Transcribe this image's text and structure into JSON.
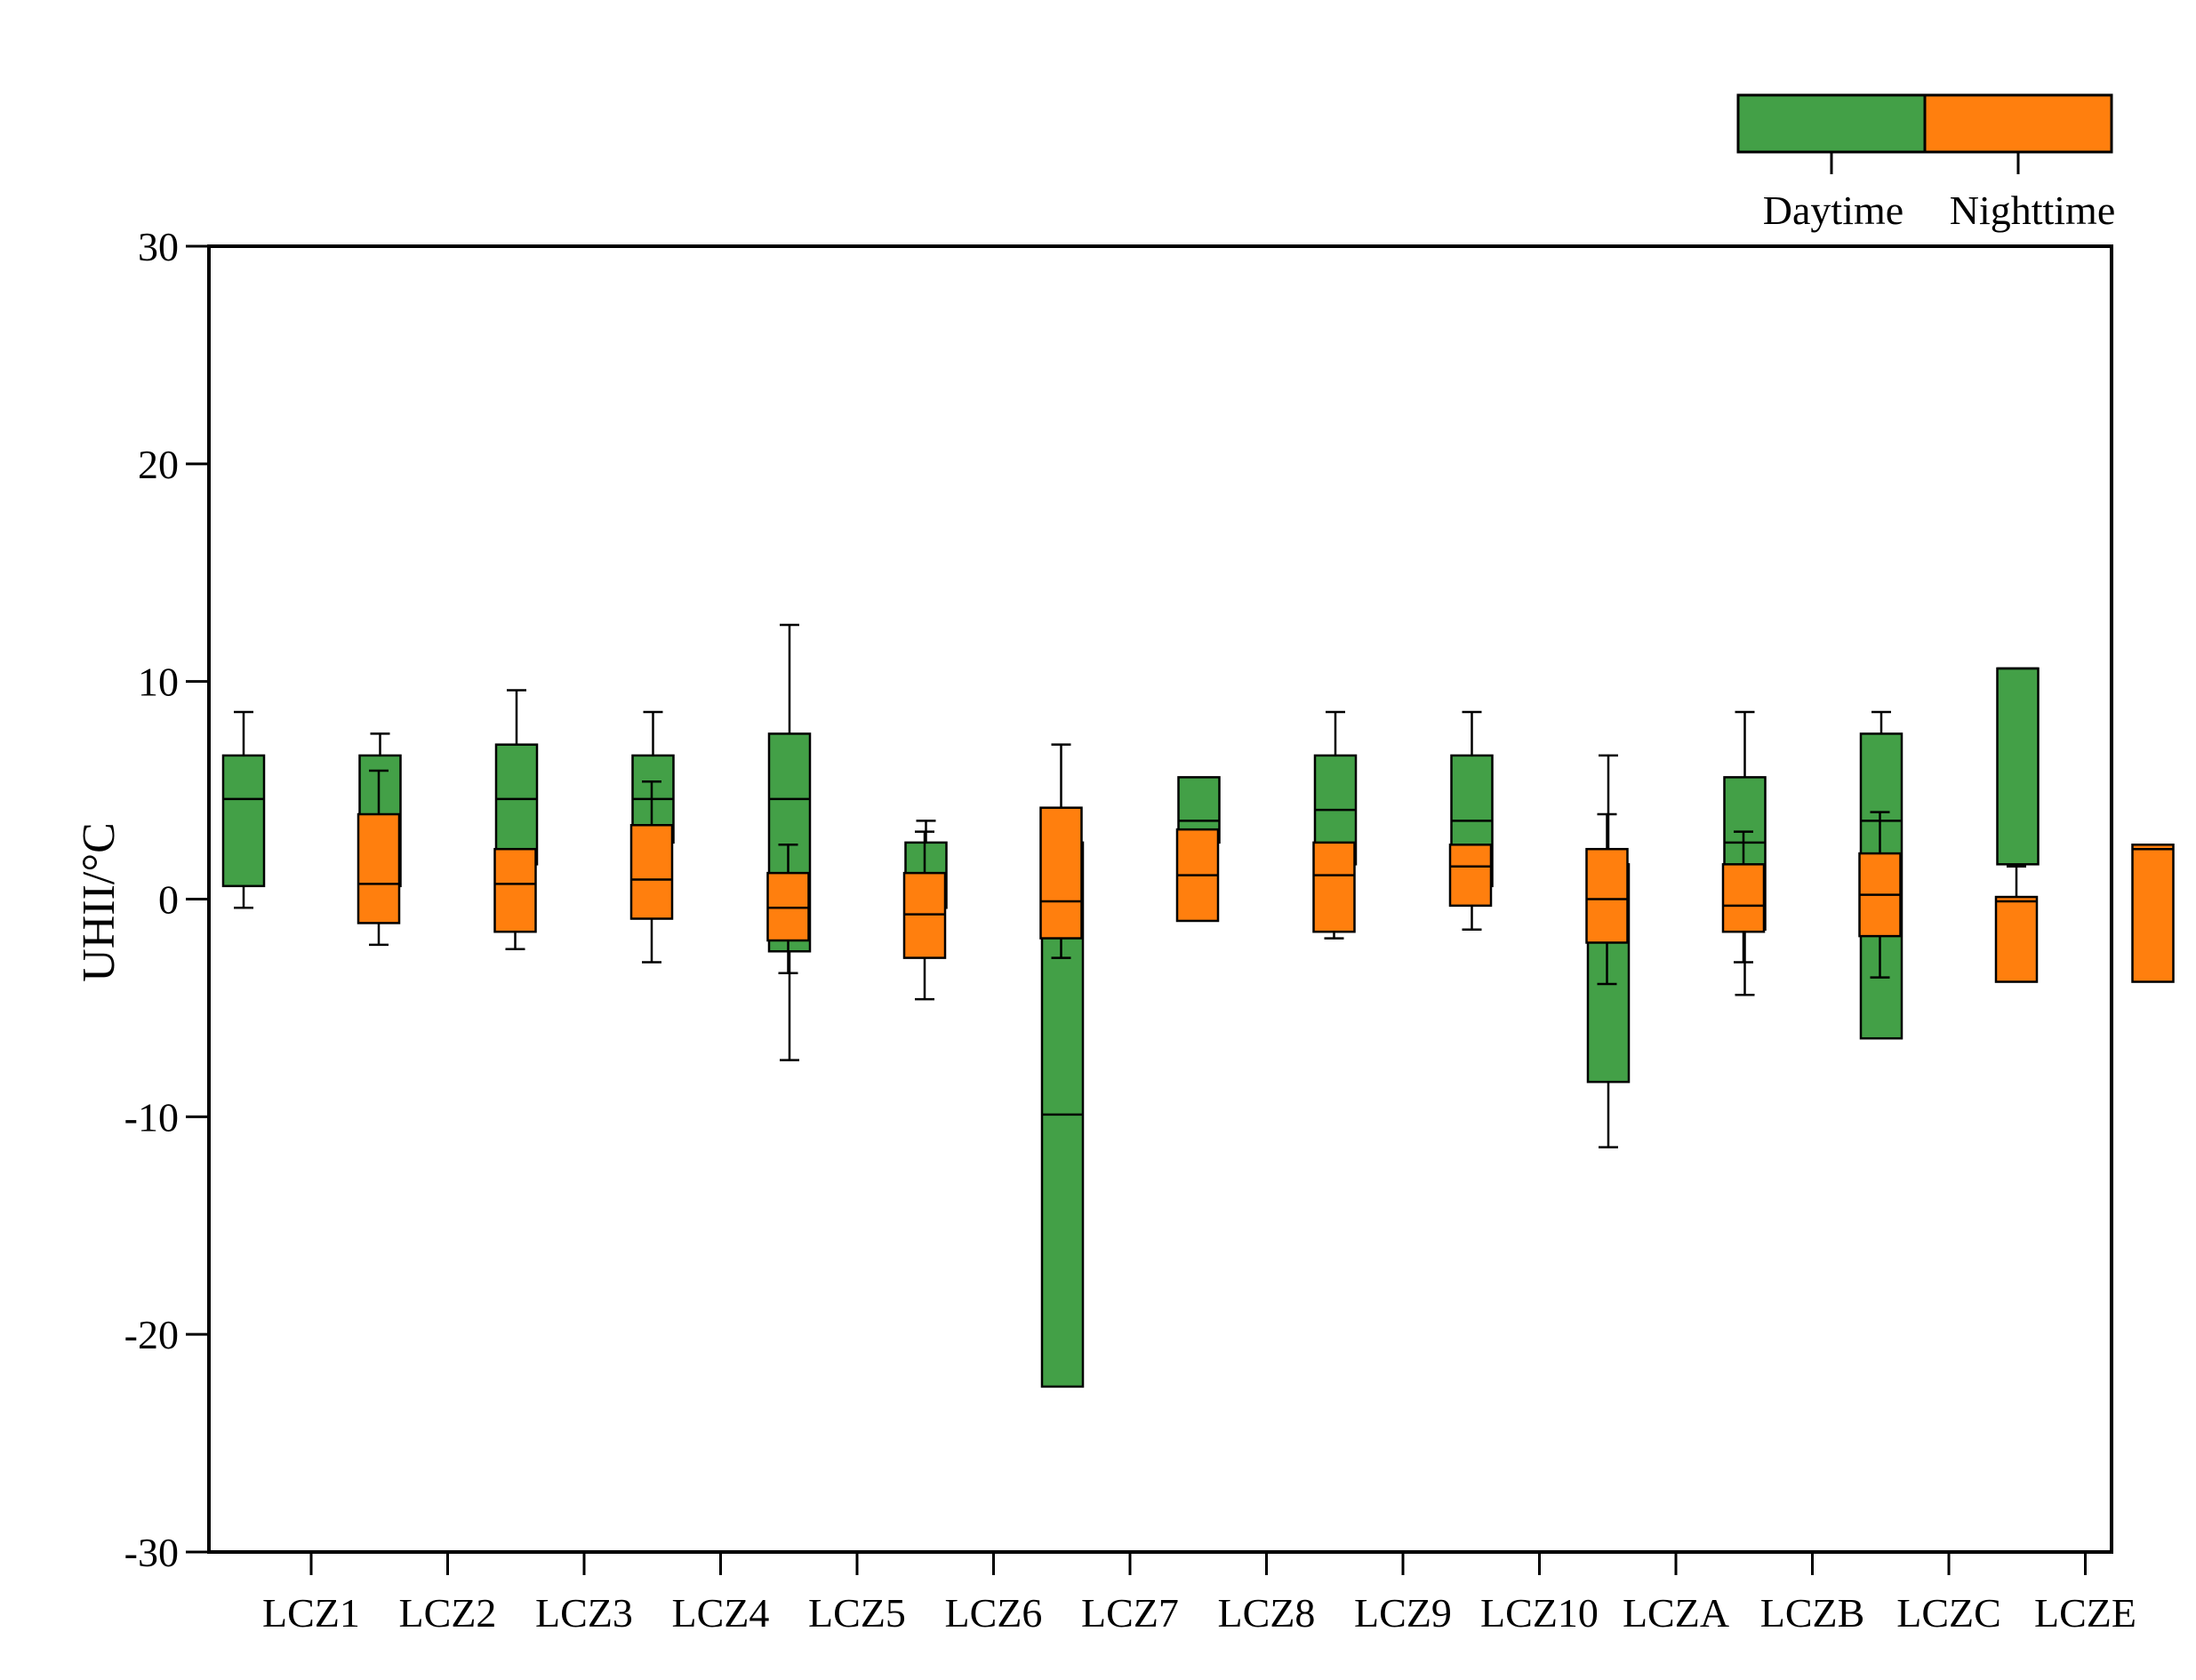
{
  "chart_data": {
    "type": "boxplot",
    "title": "",
    "xlabel": "",
    "ylabel": "UHII/°C",
    "ylim": [
      -30,
      30
    ],
    "yticks": [
      30,
      20,
      10,
      0,
      -10,
      -20,
      -30
    ],
    "ytick_labels": [
      "30",
      "20",
      "10",
      "0",
      "-10",
      "-20",
      "-30"
    ],
    "categories": [
      "LCZ1",
      "LCZ2",
      "LCZ3",
      "LCZ4",
      "LCZ5",
      "LCZ6",
      "LCZ7",
      "LCZ8",
      "LCZ9",
      "LCZ10",
      "LCZA",
      "LCZB",
      "LCZC",
      "LCZE"
    ],
    "legend": {
      "position": "top-right",
      "entries": [
        {
          "name": "Daytime",
          "color": "#43a047"
        },
        {
          "name": "Nighttime",
          "color": "#ff7f0e"
        }
      ]
    },
    "series": [
      {
        "name": "Daytime",
        "color": "#43a047",
        "boxes": [
          {
            "category": "LCZ1",
            "min": -0.4,
            "q1": 0.6,
            "median": 4.6,
            "q3": 6.6,
            "max": 8.6
          },
          {
            "category": "LCZ2",
            "min": 0.6,
            "q1": 0.6,
            "median": 3.1,
            "q3": 6.6,
            "max": 7.6
          },
          {
            "category": "LCZ3",
            "min": -0.4,
            "q1": 1.6,
            "median": 4.6,
            "q3": 7.1,
            "max": 9.6
          },
          {
            "category": "LCZ4",
            "min": 0.6,
            "q1": 2.6,
            "median": 4.6,
            "q3": 6.6,
            "max": 8.6
          },
          {
            "category": "LCZ5",
            "min": -7.4,
            "q1": -2.4,
            "median": 4.6,
            "q3": 7.6,
            "max": 12.6
          },
          {
            "category": "LCZ6",
            "min": -0.4,
            "q1": -0.4,
            "median": 0.6,
            "q3": 2.6,
            "max": 3.6
          },
          {
            "category": "LCZ7",
            "min": -22.4,
            "q1": -22.4,
            "median": -9.9,
            "q3": 2.6,
            "max": 2.6
          },
          {
            "category": "LCZ8",
            "min": 2.6,
            "q1": 2.6,
            "median": 3.6,
            "q3": 5.6,
            "max": 5.6
          },
          {
            "category": "LCZ9",
            "min": -0.4,
            "q1": 1.6,
            "median": 4.1,
            "q3": 6.6,
            "max": 8.6
          },
          {
            "category": "LCZ10",
            "min": -1.4,
            "q1": 0.6,
            "median": 3.6,
            "q3": 6.6,
            "max": 8.6
          },
          {
            "category": "LCZA",
            "min": -11.4,
            "q1": -8.4,
            "median": -1.4,
            "q3": 1.6,
            "max": 6.6
          },
          {
            "category": "LCZB",
            "min": -4.4,
            "q1": -1.4,
            "median": 2.6,
            "q3": 5.6,
            "max": 8.6
          },
          {
            "category": "LCZC",
            "min": -6.4,
            "q1": -6.4,
            "median": 3.6,
            "q3": 7.6,
            "max": 8.6
          },
          {
            "category": "LCZE",
            "min": 1.6,
            "q1": 1.6,
            "median": 10.6,
            "q3": 10.6,
            "max": 10.6
          }
        ]
      },
      {
        "name": "Nighttime",
        "color": "#ff7f0e",
        "boxes": [
          {
            "category": "LCZ1",
            "min": -2.1,
            "q1": -1.1,
            "median": 0.7,
            "q3": 3.9,
            "max": 5.9
          },
          {
            "category": "LCZ2",
            "min": -2.3,
            "q1": -1.5,
            "median": 0.7,
            "q3": 2.3,
            "max": 2.3
          },
          {
            "category": "LCZ3",
            "min": -2.9,
            "q1": -0.9,
            "median": 0.9,
            "q3": 3.4,
            "max": 5.4
          },
          {
            "category": "LCZ4",
            "min": -3.4,
            "q1": -1.9,
            "median": -0.4,
            "q3": 1.2,
            "max": 2.5
          },
          {
            "category": "LCZ5",
            "min": -4.6,
            "q1": -2.7,
            "median": -0.7,
            "q3": 1.2,
            "max": 3.1
          },
          {
            "category": "LCZ6",
            "min": -2.7,
            "q1": -1.8,
            "median": -0.1,
            "q3": 4.2,
            "max": 7.1
          },
          {
            "category": "LCZ7",
            "min": -1.0,
            "q1": -1.0,
            "median": 1.1,
            "q3": 3.2,
            "max": 3.2
          },
          {
            "category": "LCZ8",
            "min": -1.8,
            "q1": -1.5,
            "median": 1.1,
            "q3": 2.6,
            "max": 2.6
          },
          {
            "category": "LCZ9",
            "min": -0.3,
            "q1": -0.3,
            "median": 1.5,
            "q3": 2.5,
            "max": 2.5
          },
          {
            "category": "LCZ10",
            "min": -3.9,
            "q1": -2.0,
            "median": 0.0,
            "q3": 2.3,
            "max": 3.9
          },
          {
            "category": "LCZA",
            "min": -2.9,
            "q1": -1.5,
            "median": -0.3,
            "q3": 1.6,
            "max": 3.1
          },
          {
            "category": "LCZB",
            "min": -3.6,
            "q1": -1.7,
            "median": 0.2,
            "q3": 2.1,
            "max": 4.0
          },
          {
            "category": "LCZC",
            "min": -3.8,
            "q1": -3.8,
            "median": -0.1,
            "q3": 0.1,
            "max": 1.5
          },
          {
            "category": "LCZE",
            "min": -3.8,
            "q1": -3.8,
            "median": 2.3,
            "q3": 2.5,
            "max": 2.5
          }
        ]
      }
    ]
  }
}
